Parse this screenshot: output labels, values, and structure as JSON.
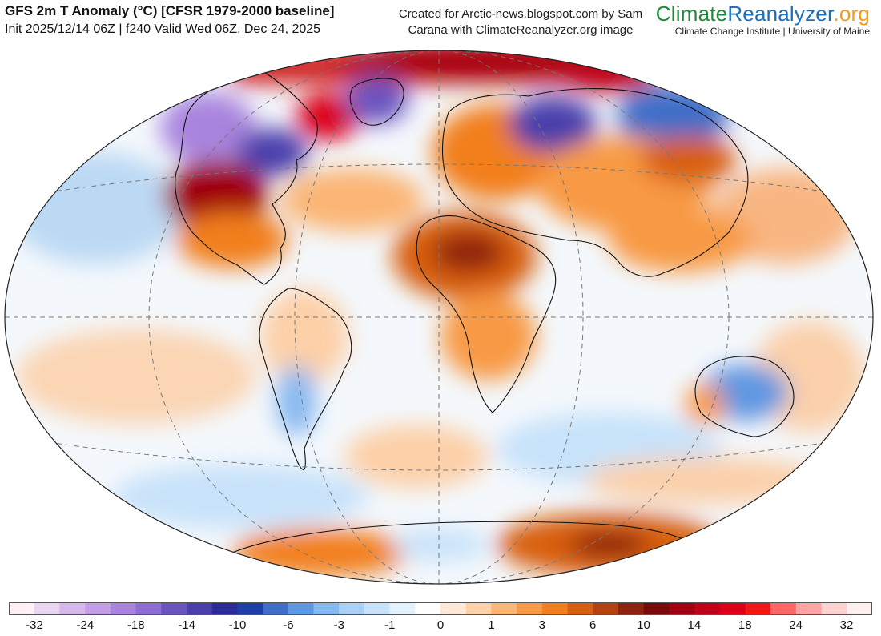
{
  "header": {
    "title": "GFS 2m T Anomaly (°C) [CFSR 1979-2000 baseline]",
    "subtitle": "Init 2025/12/14 06Z | f240 Valid Wed 06Z, Dec 24, 2025",
    "credit_line1": "Created for Arctic-news.blogspot.com by Sam",
    "credit_line2": "Carana with ClimateReanalyzer.org image"
  },
  "brand": {
    "part1": "Climate",
    "part2": "Reanalyzer",
    "part3": ".org",
    "tagline": "Climate Change Institute | University of Maine"
  },
  "colorbar": {
    "colors": [
      "#fff0f5",
      "#e8d5f0",
      "#d4b8ec",
      "#c39de6",
      "#a984de",
      "#8e6dd4",
      "#6a55c0",
      "#4a3fac",
      "#2a2a98",
      "#1f3fa8",
      "#3f6ec8",
      "#5e97e2",
      "#86b8f0",
      "#a9d0f7",
      "#c7e2fa",
      "#e3f1fc",
      "#ffffff",
      "#ffe8d6",
      "#fdd0a8",
      "#fbb575",
      "#f89a45",
      "#f27f1e",
      "#d85f10",
      "#b54010",
      "#8e2410",
      "#7a0a0a",
      "#a00010",
      "#c00018",
      "#dc0018",
      "#f21818",
      "#ff6666",
      "#ffa3a3",
      "#ffd0d0",
      "#fff0f0"
    ],
    "tick_labels": [
      "-32",
      "-24",
      "-18",
      "-14",
      "-10",
      "-6",
      "-3",
      "-1",
      "0",
      "1",
      "3",
      "6",
      "10",
      "14",
      "18",
      "24",
      "32"
    ]
  },
  "map_features": {
    "projection": "Winkel-style world ellipse",
    "hotspots": [
      {
        "region": "central-united-states",
        "anomaly": "strong warm"
      },
      {
        "region": "northern-africa-sahara",
        "anomaly": "strong warm"
      },
      {
        "region": "arctic-siberia-coast",
        "anomaly": "very strong warm"
      },
      {
        "region": "east-antarctica",
        "anomaly": "strong warm"
      },
      {
        "region": "western-canada",
        "anomaly": "cold"
      },
      {
        "region": "northern-russia",
        "anomaly": "cold"
      },
      {
        "region": "australia-interior",
        "anomaly": "cold"
      },
      {
        "region": "greenland",
        "anomaly": "cold"
      }
    ]
  }
}
